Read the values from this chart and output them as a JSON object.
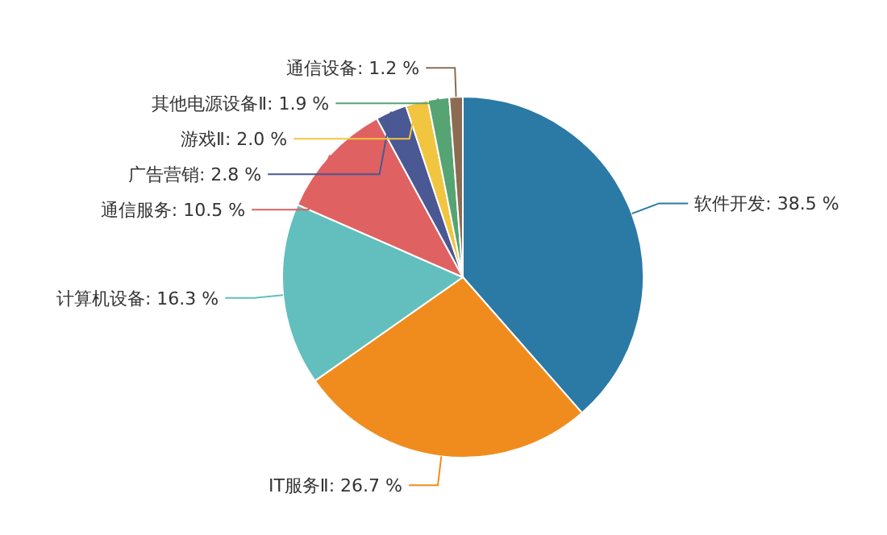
{
  "chart_data": {
    "type": "pie",
    "categories": [
      "软件开发",
      "IT服务Ⅱ",
      "计算机设备",
      "通信服务",
      "广告营销",
      "游戏Ⅱ",
      "其他电源设备Ⅱ",
      "通信设备"
    ],
    "values": [
      38.5,
      26.7,
      16.3,
      10.5,
      2.8,
      2.0,
      1.9,
      1.2
    ],
    "value_labels": [
      "38.5 %",
      "26.7 %",
      "16.3 %",
      "10.5 %",
      "2.8 %",
      "2.0 %",
      "1.9 %",
      "1.2 %"
    ],
    "colors": [
      "#2b79a5",
      "#f08c1e",
      "#62bfbd",
      "#e06162",
      "#4a5893",
      "#f1c540",
      "#56a374",
      "#8b6c52"
    ]
  }
}
